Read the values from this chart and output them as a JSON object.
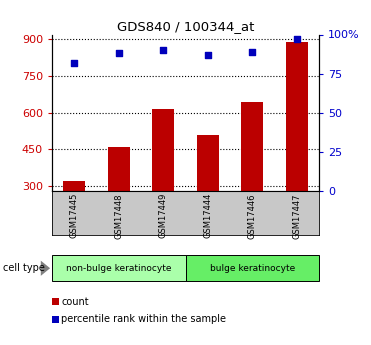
{
  "title": "GDS840 / 100344_at",
  "samples": [
    "GSM17445",
    "GSM17448",
    "GSM17449",
    "GSM17444",
    "GSM17446",
    "GSM17447"
  ],
  "bar_values": [
    320,
    460,
    615,
    510,
    645,
    888
  ],
  "percentile_values": [
    82,
    88,
    90,
    87,
    89,
    97
  ],
  "bar_color": "#bb0000",
  "dot_color": "#0000bb",
  "ylim_left": [
    280,
    920
  ],
  "ylim_right": [
    0,
    100
  ],
  "yticks_left": [
    300,
    450,
    600,
    750,
    900
  ],
  "ytick_labels_right": [
    "0",
    "25",
    "50",
    "75",
    "100%"
  ],
  "yticks_right": [
    0,
    25,
    50,
    75,
    100
  ],
  "left_tick_color": "#cc0000",
  "right_tick_color": "#0000cc",
  "group1_label": "non-bulge keratinocyte",
  "group2_label": "bulge keratinocyte",
  "group1_indices": [
    0,
    1,
    2
  ],
  "group2_indices": [
    3,
    4,
    5
  ],
  "cell_type_label": "cell type",
  "legend_count": "count",
  "legend_percentile": "percentile rank within the sample",
  "bar_width": 0.5,
  "bg_sample_label": "#c8c8c8",
  "bg_group1": "#aaffaa",
  "bg_group2": "#66ee66"
}
